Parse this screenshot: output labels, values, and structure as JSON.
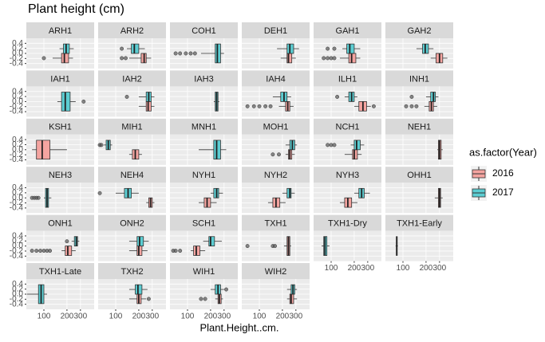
{
  "chart_data": {
    "type": "boxplot",
    "title": "Plant height (cm)",
    "x_label": "Plant.Height..cm.",
    "xscale": "log",
    "xlim": [
      59,
      453
    ],
    "xticks": [
      100,
      200,
      300
    ],
    "ylim": [
      -0.6,
      0.6
    ],
    "yticks": [
      0.4,
      0.2,
      {
        "value": 0,
        "label": "0.0"
      },
      -0.2,
      -0.4
    ],
    "legend": {
      "title": "as.factor(Year)",
      "series": [
        {
          "name": "2016",
          "color": "#f4a4a0"
        },
        {
          "name": "2017",
          "color": "#5ccdd2"
        }
      ]
    },
    "facets": [
      {
        "name": "ARH1",
        "boxes": [
          {
            "group": "2016",
            "stats": [
              130,
              170,
              185,
              210,
              240
            ],
            "outliers": [
              100
            ]
          },
          {
            "group": "2017",
            "stats": [
              160,
              180,
              195,
              215,
              245
            ],
            "outliers": []
          }
        ]
      },
      {
        "name": "ARH2",
        "boxes": [
          {
            "group": "2016",
            "stats": [
              150,
              215,
              235,
              250,
              290
            ],
            "outliers": [
              120,
              135
            ]
          },
          {
            "group": "2017",
            "stats": [
              140,
              160,
              175,
              200,
              240
            ],
            "outliers": [
              120
            ]
          }
        ]
      },
      {
        "name": "COH1",
        "boxes": [
          {
            "group": "2017",
            "stats": [
              150,
              230,
              245,
              270,
              300
            ],
            "outliers": [
              70,
              80,
              95,
              110,
              125
            ]
          }
        ]
      },
      {
        "name": "DEH1",
        "boxes": [
          {
            "group": "2016",
            "stats": [
              190,
              230,
              240,
              265,
              300
            ],
            "outliers": []
          },
          {
            "group": "2017",
            "stats": [
              170,
              230,
              250,
              280,
              330
            ],
            "outliers": []
          }
        ]
      },
      {
        "name": "GAH1",
        "boxes": [
          {
            "group": "2016",
            "stats": [
              130,
              170,
              185,
              210,
              240
            ],
            "outliers": [
              80,
              90,
              100,
              110
            ]
          },
          {
            "group": "2017",
            "stats": [
              140,
              160,
              175,
              200,
              240
            ],
            "outliers": [
              90,
              110
            ]
          }
        ]
      },
      {
        "name": "GAH2",
        "boxes": [
          {
            "group": "2016",
            "stats": [
              230,
              270,
              300,
              330,
              380
            ],
            "outliers": []
          },
          {
            "group": "2017",
            "stats": [
              150,
              180,
              195,
              215,
              250
            ],
            "outliers": []
          }
        ]
      },
      {
        "name": "IAH1",
        "boxes": [
          {
            "group": "2017",
            "stats": [
              150,
              170,
              190,
              220,
              260
            ],
            "outliers": [
              330
            ]
          }
        ]
      },
      {
        "name": "IAH2",
        "boxes": [
          {
            "group": "2016",
            "stats": [
              200,
              250,
              265,
              290,
              320
            ],
            "outliers": []
          },
          {
            "group": "2017",
            "stats": [
              200,
              250,
              270,
              290,
              320
            ],
            "outliers": [
              140
            ]
          }
        ]
      },
      {
        "name": "IAH3",
        "boxes": [
          {
            "group": "2017",
            "stats": [
              220,
              230,
              240,
              250,
              260
            ],
            "outliers": []
          }
        ]
      },
      {
        "name": "IAH4",
        "boxes": [
          {
            "group": "2016",
            "stats": [
              180,
              220,
              235,
              250,
              280
            ],
            "outliers": [
              70,
              85,
              100,
              120,
              140
            ]
          },
          {
            "group": "2017",
            "stats": [
              150,
              190,
              210,
              230,
              260
            ],
            "outliers": []
          }
        ]
      },
      {
        "name": "ILH1",
        "boxes": [
          {
            "group": "2016",
            "stats": [
              200,
              230,
              260,
              290,
              330
            ],
            "outliers": [
              360
            ]
          },
          {
            "group": "2017",
            "stats": [
              150,
              170,
              185,
              200,
              220
            ],
            "outliers": [
              120
            ]
          }
        ]
      },
      {
        "name": "INH1",
        "boxes": [
          {
            "group": "2016",
            "stats": [
              190,
              220,
              235,
              250,
              280
            ],
            "outliers": [
              110,
              130,
              150
            ]
          },
          {
            "group": "2017",
            "stats": [
              200,
              230,
              250,
              265,
              290
            ],
            "outliers": [
              130
            ]
          }
        ]
      },
      {
        "name": "KSH1",
        "boxes": [
          {
            "group": "2016",
            "stats": [
              70,
              80,
              95,
              120,
              200
            ],
            "outliers": []
          }
        ]
      },
      {
        "name": "MIH1",
        "boxes": [
          {
            "group": "2016",
            "stats": [
              150,
              165,
              180,
              200,
              220
            ],
            "outliers": []
          },
          {
            "group": "2017",
            "stats": [
              70,
              75,
              80,
              85,
              90
            ],
            "outliers": [
              62,
              65
            ]
          }
        ]
      },
      {
        "name": "MNH1",
        "boxes": [
          {
            "group": "2017",
            "stats": [
              140,
              220,
              240,
              270,
              320
            ],
            "outliers": []
          }
        ]
      },
      {
        "name": "MOH1",
        "boxes": [
          {
            "group": "2016",
            "stats": [
              220,
              240,
              250,
              265,
              290
            ],
            "outliers": [
              150,
              180
            ]
          },
          {
            "group": "2017",
            "stats": [
              220,
              250,
              270,
              290,
              310
            ],
            "outliers": []
          }
        ]
      },
      {
        "name": "NCH1",
        "boxes": [
          {
            "group": "2016",
            "stats": [
              150,
              190,
              200,
              220,
              250
            ],
            "outliers": []
          },
          {
            "group": "2017",
            "stats": [
              180,
              200,
              215,
              240,
              270
            ],
            "outliers": [
              90,
              100,
              110
            ]
          }
        ]
      },
      {
        "name": "NEH1",
        "boxes": [
          {
            "group": "2016",
            "stats": [
              280,
              290,
              300,
              315,
              330
            ],
            "outliers": []
          }
        ]
      },
      {
        "name": "NEH3",
        "boxes": [
          {
            "group": "2017",
            "stats": [
              100,
              105,
              110,
              115,
              125
            ],
            "outliers": [
              70,
              75,
              80,
              85
            ]
          }
        ]
      },
      {
        "name": "NEH4",
        "boxes": [
          {
            "group": "2016",
            "stats": [
              250,
              270,
              285,
              300,
              320
            ],
            "outliers": []
          },
          {
            "group": "2017",
            "stats": [
              100,
              130,
              145,
              160,
              200
            ],
            "outliers": [
              62
            ]
          }
        ]
      },
      {
        "name": "NYH1",
        "boxes": [
          {
            "group": "2016",
            "stats": [
              140,
              165,
              180,
              200,
              240
            ],
            "outliers": []
          },
          {
            "group": "2017",
            "stats": [
              200,
              220,
              240,
              255,
              290
            ],
            "outliers": []
          }
        ]
      },
      {
        "name": "NYH2",
        "boxes": [
          {
            "group": "2016",
            "stats": [
              130,
              150,
              165,
              185,
              220
            ],
            "outliers": []
          },
          {
            "group": "2017",
            "stats": [
              200,
              230,
              250,
              260,
              290
            ],
            "outliers": []
          }
        ]
      },
      {
        "name": "NYH3",
        "boxes": [
          {
            "group": "2016",
            "stats": [
              130,
              150,
              165,
              185,
              220
            ],
            "outliers": []
          },
          {
            "group": "2017",
            "stats": [
              200,
              230,
              250,
              270,
              320
            ],
            "outliers": []
          }
        ]
      },
      {
        "name": "OHH1",
        "boxes": [
          {
            "group": "2016",
            "stats": [
              260,
              290,
              300,
              310,
              330
            ],
            "outliers": []
          }
        ]
      },
      {
        "name": "ONH1",
        "boxes": [
          {
            "group": "2016",
            "stats": [
              170,
              190,
              205,
              230,
              260
            ],
            "outliers": [
              70,
              80,
              90,
              100,
              110,
              120
            ]
          },
          {
            "group": "2017",
            "stats": [
              230,
              250,
              265,
              275,
              290
            ],
            "outliers": [
              200
            ]
          }
        ]
      },
      {
        "name": "ONH2",
        "boxes": [
          {
            "group": "2016",
            "stats": [
              150,
              190,
              200,
              220,
              260
            ],
            "outliers": []
          },
          {
            "group": "2017",
            "stats": [
              150,
              190,
              205,
              230,
              270
            ],
            "outliers": []
          }
        ]
      },
      {
        "name": "SCH1",
        "boxes": [
          {
            "group": "2016",
            "stats": [
              110,
              120,
              130,
              145,
              170
            ],
            "outliers": [
              65,
              70,
              80
            ]
          },
          {
            "group": "2017",
            "stats": [
              160,
              190,
              200,
              225,
              280
            ],
            "outliers": []
          }
        ]
      },
      {
        "name": "TXH1",
        "boxes": [
          {
            "group": "2016",
            "stats": [
              210,
              230,
              240,
              250,
              260
            ],
            "outliers": [
              70,
              150,
              160
            ]
          }
        ]
      },
      {
        "name": "TXH1-Dry",
        "boxes": [
          {
            "group": "2017",
            "stats": [
              75,
              80,
              83,
              88,
              95
            ],
            "outliers": []
          }
        ]
      },
      {
        "name": "TXH1-Early",
        "boxes": [
          {
            "group": "2017",
            "stats": [
              80,
              82,
              83,
              84,
              86
            ],
            "outliers": []
          }
        ]
      },
      {
        "name": "TXH1-Late",
        "boxes": [
          {
            "group": "2017",
            "stats": [
              60,
              85,
              92,
              100,
              110
            ],
            "outliers": []
          }
        ]
      },
      {
        "name": "TXH2",
        "boxes": [
          {
            "group": "2016",
            "stats": [
              150,
              190,
              200,
              215,
              250
            ],
            "outliers": [
              270
            ]
          },
          {
            "group": "2017",
            "stats": [
              150,
              180,
              195,
              220,
              260
            ],
            "outliers": []
          }
        ]
      },
      {
        "name": "WIH1",
        "boxes": [
          {
            "group": "2016",
            "stats": [
              230,
              250,
              260,
              275,
              290
            ],
            "outliers": [
              150,
              170
            ]
          },
          {
            "group": "2017",
            "stats": [
              200,
              230,
              250,
              270,
              300
            ],
            "outliers": [
              320
            ]
          }
        ]
      },
      {
        "name": "WIH2",
        "boxes": [
          {
            "group": "2016",
            "stats": [
              230,
              250,
              260,
              280,
              310
            ],
            "outliers": []
          },
          {
            "group": "2017",
            "stats": [
              230,
              260,
              275,
              290,
              310
            ],
            "outliers": []
          }
        ]
      }
    ]
  }
}
